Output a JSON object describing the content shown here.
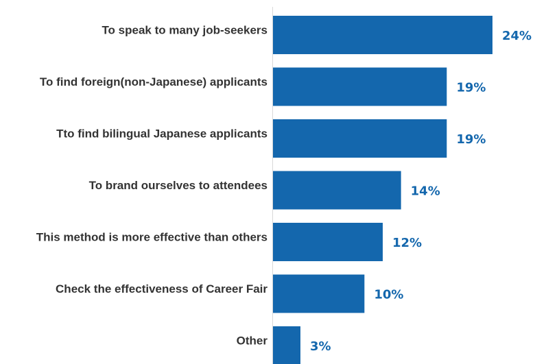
{
  "chart_data": {
    "type": "bar",
    "orientation": "horizontal",
    "categories": [
      "To speak to many job-seekers",
      "To find foreign(non-Japanese) applicants",
      "Tto find bilingual Japanese applicants",
      "To brand ourselves to attendees",
      "This method is more effective than others",
      "Check the effectiveness of Career Fair",
      "Other"
    ],
    "values": [
      24,
      19,
      19,
      14,
      12,
      10,
      3
    ],
    "value_labels": [
      "24%",
      "19%",
      "19%",
      "14%",
      "12%",
      "10%",
      "3%"
    ],
    "xlim": [
      0,
      24
    ],
    "grid": false,
    "legend": "none",
    "colors": {
      "bar": "#1467ad",
      "value_label": "#1467ad",
      "category_label": "#333333",
      "axis": "#d9d9d9"
    }
  }
}
